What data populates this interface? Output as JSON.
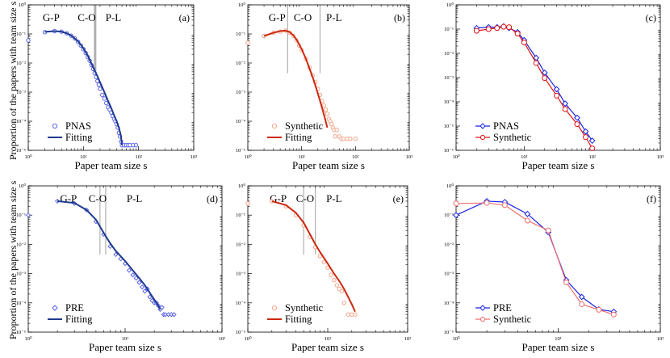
{
  "figure": {
    "ylabel_top": "Proportion of the papers with team size s",
    "ylabel_bottom": "Proportion of the papers with team size s"
  },
  "chart_data": [
    {
      "id": "a",
      "type": "scatter",
      "panel_label": "(a)",
      "xlabel": "Paper team size s",
      "ylabel": "Proportion of the papers with team size s",
      "xscale": "log",
      "yscale": "log",
      "xlim": [
        1,
        1000
      ],
      "ylim": [
        1e-05,
        1
      ],
      "xticks": [
        {
          "v": 1,
          "t": "10⁰"
        },
        {
          "v": 10,
          "t": "10¹"
        },
        {
          "v": 100,
          "t": "10²"
        },
        {
          "v": 1000,
          "t": "10³"
        }
      ],
      "yticks": [
        {
          "v": 1e-05,
          "t": "10⁻⁵"
        },
        {
          "v": 0.0001,
          "t": "10⁻⁴"
        },
        {
          "v": 0.001,
          "t": "10⁻³"
        },
        {
          "v": 0.01,
          "t": "10⁻²"
        },
        {
          "v": 0.1,
          "t": "10⁻¹"
        },
        {
          "v": 1,
          "t": "10⁰"
        }
      ],
      "regions": [
        {
          "label": "G-P",
          "x": 2.6
        },
        {
          "label": "C-O",
          "x": 11.5
        },
        {
          "label": "P-L",
          "x": 35
        }
      ],
      "vlines": [
        15.8,
        16.3,
        16.8
      ],
      "legend_position": "bottom-left",
      "series": [
        {
          "name": "PNAS",
          "style": "scatter-circle",
          "color": "#5b63e8",
          "x": [
            1,
            2,
            3,
            4,
            5,
            6,
            7,
            8,
            9,
            10,
            11,
            12,
            13,
            14,
            15,
            16,
            17,
            18,
            19,
            20,
            22,
            24,
            26,
            28,
            30,
            32,
            34,
            36,
            38,
            40,
            42,
            44,
            46,
            48,
            50,
            55,
            60,
            65,
            70,
            80,
            90
          ],
          "y": [
            0.06,
            0.115,
            0.125,
            0.12,
            0.105,
            0.087,
            0.07,
            0.053,
            0.04,
            0.03,
            0.022,
            0.016,
            0.012,
            0.0085,
            0.0062,
            0.0045,
            0.0033,
            0.0024,
            0.0018,
            0.0013,
            0.0008,
            0.0006,
            0.00042,
            0.0003,
            0.00025,
            0.0002,
            0.00015,
            0.00012,
            0.0001,
            8e-05,
            6e-05,
            4e-05,
            3e-05,
            2e-05,
            1.5e-05,
            1.5e-05,
            1.5e-05,
            1.5e-05,
            1.5e-05,
            1.5e-05,
            1.5e-05
          ]
        },
        {
          "name": "Fitting",
          "style": "line",
          "color": "#1f3a8f",
          "x": [
            2,
            3,
            4,
            5,
            6,
            8,
            10,
            12,
            14,
            16,
            18,
            20,
            24,
            28,
            32,
            36,
            40,
            44,
            48,
            50
          ],
          "y": [
            0.118,
            0.125,
            0.12,
            0.105,
            0.088,
            0.056,
            0.032,
            0.018,
            0.0095,
            0.0055,
            0.0035,
            0.0022,
            0.001,
            0.0005,
            0.00028,
            0.00016,
            0.0001,
            6e-05,
            3e-05,
            1.5e-05
          ]
        }
      ]
    },
    {
      "id": "b",
      "type": "scatter",
      "panel_label": "(b)",
      "xlabel": "Paper team size s",
      "ylabel": "",
      "xscale": "log",
      "yscale": "log",
      "xlim": [
        1,
        1000
      ],
      "ylim": [
        1e-05,
        1
      ],
      "xticks": [
        {
          "v": 1,
          "t": "10⁰"
        },
        {
          "v": 10,
          "t": "10¹"
        },
        {
          "v": 100,
          "t": "10²"
        },
        {
          "v": 1000,
          "t": "10³"
        }
      ],
      "yticks": [
        {
          "v": 1e-05,
          "t": "10⁻⁵"
        },
        {
          "v": 0.0001,
          "t": "10⁻⁴"
        },
        {
          "v": 0.001,
          "t": "10⁻³"
        },
        {
          "v": 0.01,
          "t": "10⁻²"
        },
        {
          "v": 0.1,
          "t": "10⁻¹"
        },
        {
          "v": 1,
          "t": "10⁰"
        }
      ],
      "regions": [
        {
          "label": "G-P",
          "x": 3.5
        },
        {
          "label": "C-O",
          "x": 10.5
        },
        {
          "label": "P-L",
          "x": 40
        }
      ],
      "vlines": [
        5.5,
        22
      ],
      "legend_position": "bottom-left",
      "series": [
        {
          "name": "Synthetic",
          "style": "scatter-circle",
          "color": "#f5a58a",
          "x": [
            1,
            2,
            3,
            4,
            5,
            6,
            7,
            8,
            9,
            10,
            12,
            14,
            16,
            18,
            20,
            22,
            24,
            26,
            28,
            30,
            32,
            34,
            36,
            38,
            40,
            42,
            45,
            50,
            55,
            60,
            70,
            80,
            100
          ],
          "y": [
            0.05,
            0.085,
            0.11,
            0.12,
            0.13,
            0.11,
            0.085,
            0.06,
            0.04,
            0.028,
            0.014,
            0.007,
            0.0038,
            0.0022,
            0.0013,
            0.0008,
            0.0005,
            0.00035,
            0.00025,
            0.00018,
            0.00012,
            0.0001,
            8e-05,
            6e-05,
            5e-05,
            3e-05,
            5e-05,
            3e-05,
            2.5e-05,
            2.5e-05,
            2.5e-05,
            2.5e-05,
            2.5e-05
          ]
        },
        {
          "name": "Fitting",
          "style": "line",
          "color": "#cc2a10",
          "x": [
            2,
            3,
            4,
            5,
            6,
            7,
            8,
            10,
            12,
            14,
            16,
            18,
            20,
            22,
            25,
            28,
            30
          ],
          "y": [
            0.085,
            0.11,
            0.125,
            0.13,
            0.115,
            0.09,
            0.065,
            0.03,
            0.014,
            0.0065,
            0.0033,
            0.0017,
            0.0009,
            0.0005,
            0.00022,
            0.0001,
            6e-05
          ]
        }
      ]
    },
    {
      "id": "c",
      "type": "line",
      "panel_label": "(c)",
      "xlabel": "Paper team size s",
      "ylabel": "",
      "xscale": "log",
      "yscale": "log",
      "xlim": [
        1,
        1000
      ],
      "ylim": [
        1e-06,
        1
      ],
      "xticks": [
        {
          "v": 1,
          "t": "10⁰"
        },
        {
          "v": 10,
          "t": "10¹"
        },
        {
          "v": 100,
          "t": "10²"
        },
        {
          "v": 1000,
          "t": "10³"
        }
      ],
      "yticks": [
        {
          "v": 1e-06,
          "t": "10⁻⁶"
        },
        {
          "v": 1e-05,
          "t": "10⁻⁵"
        },
        {
          "v": 0.0001,
          "t": "10⁻⁴"
        },
        {
          "v": 0.001,
          "t": "10⁻³"
        },
        {
          "v": 0.01,
          "t": "10⁻²"
        },
        {
          "v": 0.1,
          "t": "10⁻¹"
        },
        {
          "v": 1,
          "t": "10⁰"
        }
      ],
      "regions": [],
      "vlines": [],
      "legend_position": "bottom-left",
      "series": [
        {
          "name": "PNAS",
          "style": "line-diamond",
          "color": "#1a23e0",
          "x": [
            2,
            3,
            4,
            5,
            6,
            8,
            10,
            15,
            20,
            30,
            40,
            60,
            80,
            100
          ],
          "y": [
            0.11,
            0.12,
            0.12,
            0.13,
            0.11,
            0.075,
            0.035,
            0.0065,
            0.0016,
            0.00033,
            8.5e-05,
            2.2e-05,
            6e-06,
            2.5e-06
          ]
        },
        {
          "name": "Synthetic",
          "style": "line-circle",
          "color": "#e0141a",
          "x": [
            2,
            3,
            4,
            5,
            6,
            8,
            10,
            15,
            20,
            30,
            40,
            60,
            80,
            100
          ],
          "y": [
            0.085,
            0.1,
            0.11,
            0.125,
            0.12,
            0.065,
            0.028,
            0.004,
            0.00095,
            0.00018,
            5e-05,
            1.2e-05,
            3.5e-06,
            1.2e-06
          ]
        }
      ]
    },
    {
      "id": "d",
      "type": "scatter",
      "panel_label": "(d)",
      "xlabel": "Paper team size s",
      "ylabel": "Proportion of the papers with team size s",
      "xscale": "log",
      "yscale": "log",
      "xlim": [
        1,
        100
      ],
      "ylim": [
        1e-05,
        1
      ],
      "xticks": [
        {
          "v": 1,
          "t": "10⁰"
        },
        {
          "v": 10,
          "t": "10¹"
        },
        {
          "v": 100,
          "t": "10²"
        }
      ],
      "yticks": [
        {
          "v": 1e-05,
          "t": "10⁻⁵"
        },
        {
          "v": 0.0001,
          "t": "10⁻⁴"
        },
        {
          "v": 0.001,
          "t": "10⁻³"
        },
        {
          "v": 0.01,
          "t": "10⁻²"
        },
        {
          "v": 0.1,
          "t": "10⁻¹"
        },
        {
          "v": 1,
          "t": "10⁰"
        }
      ],
      "regions": [
        {
          "label": "G-P",
          "x": 2.6
        },
        {
          "label": "C-O",
          "x": 5.2
        },
        {
          "label": "P-L",
          "x": 12.5
        }
      ],
      "vlines": [
        5.5,
        6.3
      ],
      "legend_position": "bottom-left",
      "series": [
        {
          "name": "PRE",
          "style": "scatter-diamond",
          "color": "#5b63e8",
          "x": [
            1,
            2,
            3,
            4,
            5,
            6,
            7,
            8,
            9,
            10,
            11,
            12,
            13,
            14,
            15,
            16,
            17,
            18,
            19,
            20,
            21,
            22,
            23,
            24,
            25,
            26,
            28,
            30,
            32
          ],
          "y": [
            0.1,
            0.3,
            0.25,
            0.15,
            0.06,
            0.022,
            0.0085,
            0.0045,
            0.0032,
            0.0022,
            0.0013,
            0.0009,
            0.0007,
            0.0005,
            0.00035,
            0.00025,
            0.0003,
            0.00016,
            0.00012,
            0.0001,
            0.0001,
            8e-05,
            6e-05,
            7e-05,
            4e-05,
            4e-05,
            4e-05,
            4e-05,
            4e-05
          ]
        },
        {
          "name": "Fitting",
          "style": "line",
          "color": "#1f3a8f",
          "x": [
            2,
            3,
            4,
            5,
            6,
            7,
            8,
            10,
            12,
            14,
            16,
            18,
            20,
            22,
            23
          ],
          "y": [
            0.3,
            0.26,
            0.15,
            0.07,
            0.025,
            0.011,
            0.006,
            0.0027,
            0.0013,
            0.0007,
            0.0004,
            0.00022,
            0.00013,
            8e-05,
            6e-05
          ]
        }
      ]
    },
    {
      "id": "e",
      "type": "scatter",
      "panel_label": "(e)",
      "xlabel": "Paper team size s",
      "ylabel": "",
      "xscale": "log",
      "yscale": "log",
      "xlim": [
        1,
        100
      ],
      "ylim": [
        1e-05,
        1
      ],
      "xticks": [
        {
          "v": 1,
          "t": "10⁰"
        },
        {
          "v": 10,
          "t": "10¹"
        },
        {
          "v": 100,
          "t": "10²"
        }
      ],
      "yticks": [
        {
          "v": 1e-05,
          "t": "10⁻⁵"
        },
        {
          "v": 0.0001,
          "t": "10⁻⁴"
        },
        {
          "v": 0.001,
          "t": "10⁻³"
        },
        {
          "v": 0.01,
          "t": "10⁻²"
        },
        {
          "v": 0.1,
          "t": "10⁻¹"
        },
        {
          "v": 1,
          "t": "10⁰"
        }
      ],
      "regions": [
        {
          "label": "G-P",
          "x": 2.4
        },
        {
          "label": "C-O",
          "x": 5.2
        },
        {
          "label": "P-L",
          "x": 12
        }
      ],
      "vlines": [
        5.0,
        7.0
      ],
      "legend_position": "bottom-left",
      "series": [
        {
          "name": "Synthetic",
          "style": "scatter-circle",
          "color": "#f5a58a",
          "x": [
            1,
            2,
            3,
            4,
            5,
            6,
            7,
            8,
            9,
            10,
            11,
            12,
            13,
            14,
            15,
            16,
            18,
            20,
            22
          ],
          "y": [
            0.25,
            0.3,
            0.2,
            0.1,
            0.045,
            0.018,
            0.008,
            0.004,
            0.0025,
            0.0016,
            0.0009,
            0.0006,
            0.0004,
            0.0003,
            0.00025,
            0.0001,
            4e-05,
            4e-05,
            4e-05
          ]
        },
        {
          "name": "Fitting",
          "style": "line",
          "color": "#cc2a10",
          "x": [
            2,
            3,
            4,
            5,
            6,
            7,
            8,
            10,
            12,
            14,
            16,
            18,
            20,
            22
          ],
          "y": [
            0.3,
            0.22,
            0.12,
            0.055,
            0.022,
            0.01,
            0.0055,
            0.0022,
            0.001,
            0.00055,
            0.0003,
            0.00016,
            9e-05,
            5e-05
          ]
        }
      ]
    },
    {
      "id": "f",
      "type": "line",
      "panel_label": "(f)",
      "xlabel": "Paper team size s",
      "ylabel": "",
      "xscale": "log",
      "yscale": "log",
      "xlim": [
        1,
        100
      ],
      "ylim": [
        1e-05,
        1
      ],
      "xticks": [
        {
          "v": 1,
          "t": "10⁰"
        },
        {
          "v": 10,
          "t": "10¹"
        },
        {
          "v": 100,
          "t": "10²"
        }
      ],
      "yticks": [
        {
          "v": 1e-05,
          "t": "10⁻⁵"
        },
        {
          "v": 0.0001,
          "t": "10⁻⁴"
        },
        {
          "v": 0.001,
          "t": "10⁻³"
        },
        {
          "v": 0.01,
          "t": "10⁻²"
        },
        {
          "v": 0.1,
          "t": "10⁻¹"
        },
        {
          "v": 1,
          "t": "10⁰"
        }
      ],
      "regions": [],
      "vlines": [],
      "legend_position": "bottom-left",
      "series": [
        {
          "name": "PRE",
          "style": "line-diamond",
          "color": "#1a23e0",
          "x": [
            1,
            2,
            3,
            5,
            8,
            12,
            17,
            25,
            35
          ],
          "y": [
            0.1,
            0.3,
            0.28,
            0.11,
            0.026,
            0.0006,
            0.00016,
            6e-05,
            5e-05
          ]
        },
        {
          "name": "Synthetic",
          "style": "line-circle",
          "color": "#f07070",
          "x": [
            1,
            2,
            3,
            5,
            8,
            12,
            17,
            25,
            35
          ],
          "y": [
            0.25,
            0.26,
            0.22,
            0.065,
            0.03,
            0.0005,
            9e-05,
            5.8e-05,
            4e-05
          ]
        }
      ]
    }
  ]
}
